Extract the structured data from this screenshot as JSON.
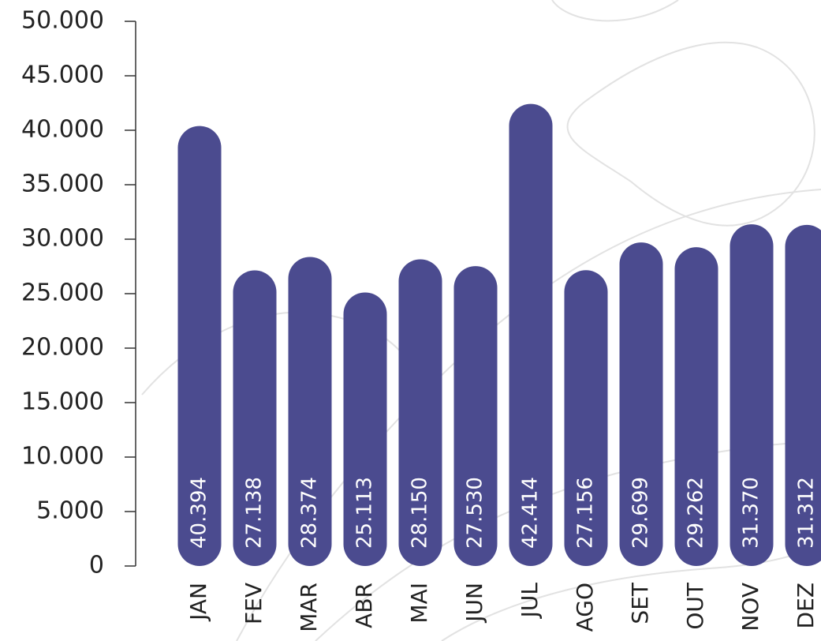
{
  "chart_data": {
    "type": "bar",
    "categories": [
      "JAN",
      "FEV",
      "MAR",
      "ABR",
      "MAI",
      "JUN",
      "JUL",
      "AGO",
      "SET",
      "OUT",
      "NOV",
      "DEZ"
    ],
    "values": [
      40394,
      27138,
      28374,
      25113,
      28150,
      27530,
      42414,
      27156,
      29699,
      29262,
      31370,
      31312
    ],
    "value_labels": [
      "40.394",
      "27.138",
      "28.374",
      "25.113",
      "28.150",
      "27.530",
      "42.414",
      "27.156",
      "29.699",
      "29.262",
      "31.370",
      "31.312"
    ],
    "color": "#4b4b8f",
    "ylim": [
      0,
      50000
    ],
    "yticks": [
      0,
      {
        "value": 5000,
        "label": "5.000"
      },
      {
        "value": 10000,
        "label": "10.000"
      },
      {
        "value": 15000,
        "label": "15.000"
      },
      {
        "value": 20000,
        "label": "20.000"
      },
      {
        "value": 25000,
        "label": "25.000"
      },
      {
        "value": 30000,
        "label": "30.000"
      },
      {
        "value": 35000,
        "label": "35.000"
      },
      {
        "value": 40000,
        "label": "40.000"
      },
      {
        "value": 45000,
        "label": "45.000"
      },
      {
        "value": 50000,
        "label": "50.000"
      }
    ],
    "grid": false
  }
}
